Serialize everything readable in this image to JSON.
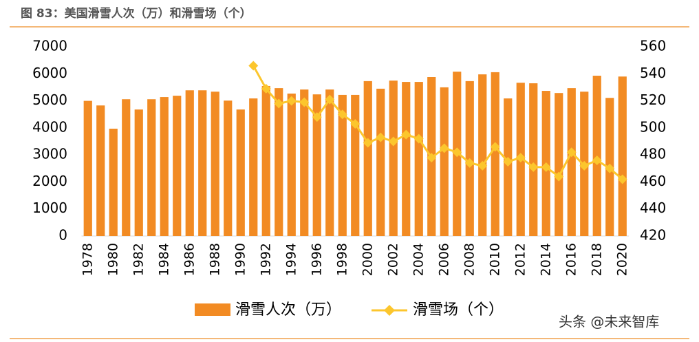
{
  "chart_data": {
    "type": "bar",
    "title": "图 83：美国滑雪人次（万）和滑雪场（个）",
    "categories": [
      "1978",
      null,
      "1980",
      null,
      "1982",
      null,
      "1984",
      null,
      "1986",
      null,
      "1988",
      null,
      "1990",
      null,
      "1992",
      null,
      "1994",
      null,
      "1996",
      null,
      "1998",
      null,
      "2000",
      null,
      "2002",
      null,
      "2004",
      null,
      "2006",
      null,
      "2008",
      null,
      "2010",
      null,
      "2012",
      null,
      "2014",
      null,
      "2016",
      null,
      "2018",
      null,
      "2020"
    ],
    "series": [
      {
        "name": "滑雪人次（万）",
        "type": "bar",
        "color": "#f28b23",
        "values": [
          5000,
          4830,
          3970,
          5060,
          4680,
          5060,
          5140,
          5190,
          5390,
          5390,
          5340,
          5010,
          4680,
          5090,
          5550,
          5470,
          5270,
          5420,
          5240,
          5420,
          5220,
          5220,
          5730,
          5450,
          5750,
          5700,
          5700,
          5880,
          5500,
          6080,
          5730,
          5980,
          6060,
          5090,
          5670,
          5650,
          5370,
          5290,
          5470,
          5340,
          5930,
          5110,
          5900
        ]
      },
      {
        "name": "滑雪场（个）",
        "type": "line",
        "color": "#fcc62d",
        "axis": "y2",
        "values": [
          null,
          null,
          null,
          null,
          null,
          null,
          null,
          null,
          null,
          null,
          null,
          null,
          null,
          546,
          529,
          518,
          520,
          519,
          508,
          521,
          510,
          503,
          489,
          493,
          490,
          495,
          492,
          478,
          485,
          482,
          474,
          472,
          486,
          475,
          478,
          471,
          471,
          464,
          482,
          472,
          476,
          470,
          462
        ]
      }
    ],
    "ylim": [
      0,
      7000
    ],
    "yticks": [
      0,
      1000,
      2000,
      3000,
      4000,
      5000,
      6000,
      7000
    ],
    "y2lim": [
      420,
      560
    ],
    "y2ticks": [
      420,
      440,
      460,
      480,
      500,
      520,
      540,
      560
    ],
    "legend": "bottom",
    "watermark": "头条 @未来智库"
  }
}
